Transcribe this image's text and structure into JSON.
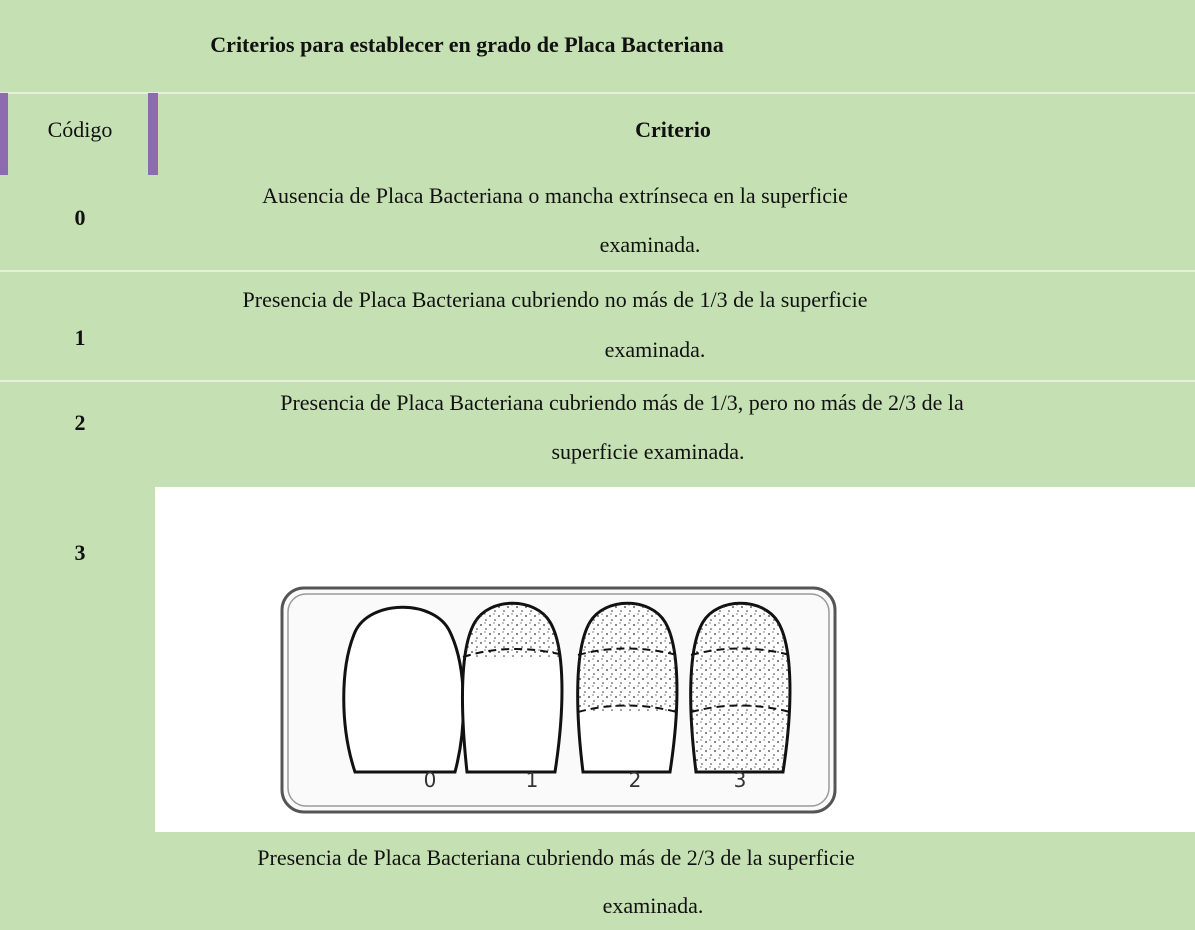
{
  "header": {
    "title": "Criterios para establecer en grado de Placa Bacteriana"
  },
  "table": {
    "columns": [
      "Código",
      "Criterio"
    ],
    "rows": [
      {
        "code": "0",
        "criterion": [
          "Ausencia de Placa Bacteriana o mancha extrínseca en la superficie",
          "examinada."
        ]
      },
      {
        "code": "1",
        "criterion": [
          "Presencia de Placa Bacteriana cubriendo no más de 1/3 de la superficie",
          "examinada."
        ]
      },
      {
        "code": "2",
        "criterion": [
          "Presencia de Placa Bacteriana cubriendo más de 1/3, pero no más de 2/3 de la",
          "superficie examinada."
        ]
      },
      {
        "code": "3",
        "criterion": [
          "Presencia de Placa Bacteriana cubriendo más de 2/3 de la superficie",
          "examinada."
        ]
      }
    ]
  },
  "figure": {
    "labels": [
      "0",
      "1",
      "2",
      "3"
    ]
  }
}
